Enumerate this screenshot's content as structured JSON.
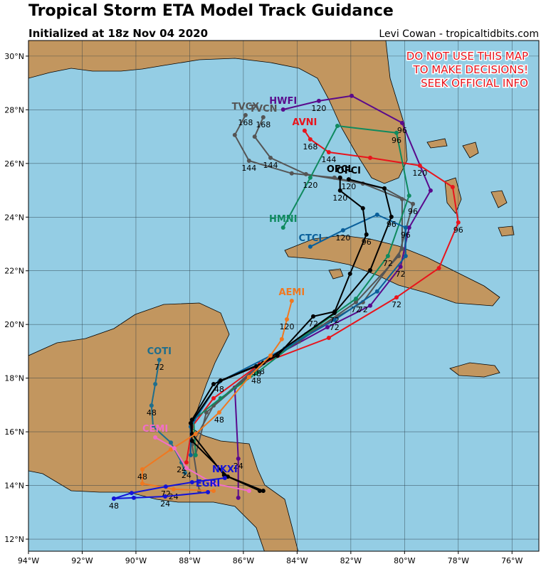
{
  "header": {
    "title": "Tropical Storm ETA Model Track Guidance",
    "subtitle": "Initialized at 18z Nov 04 2020",
    "credit": "Levi Cowan - tropicaltidbits.com"
  },
  "warning": [
    "DO NOT USE THIS MAP",
    "TO MAKE DECISIONS!",
    "SEEK OFFICIAL INFO"
  ],
  "map": {
    "xlim": [
      -94,
      -75
    ],
    "ylim": [
      11.55,
      30.58
    ],
    "xticks": [
      {
        "value": -94,
        "label": "94°W"
      },
      {
        "value": -92,
        "label": "92°W"
      },
      {
        "value": -90,
        "label": "90°W"
      },
      {
        "value": -88,
        "label": "88°W"
      },
      {
        "value": -86,
        "label": "86°W"
      },
      {
        "value": -84,
        "label": "84°W"
      },
      {
        "value": -82,
        "label": "82°W"
      },
      {
        "value": -80,
        "label": "80°W"
      },
      {
        "value": -78,
        "label": "78°W"
      },
      {
        "value": -76,
        "label": "76°W"
      }
    ],
    "yticks": [
      {
        "value": 12,
        "label": "12°N"
      },
      {
        "value": 14,
        "label": "14°N"
      },
      {
        "value": 16,
        "label": "16°N"
      },
      {
        "value": 18,
        "label": "18°N"
      },
      {
        "value": 20,
        "label": "20°N"
      },
      {
        "value": 22,
        "label": "22°N"
      },
      {
        "value": 24,
        "label": "24°N"
      },
      {
        "value": 26,
        "label": "26°N"
      },
      {
        "value": 28,
        "label": "28°N"
      },
      {
        "value": 30,
        "label": "30°N"
      }
    ],
    "grid": true,
    "tracks": [
      {
        "name": "HWFI",
        "color": "#5a0a8c",
        "points": [
          [
            -84.52,
            28.01
          ],
          [
            -83.19,
            28.33
          ],
          [
            -81.97,
            28.52
          ],
          [
            -80.09,
            27.51
          ],
          [
            -79.03,
            24.99
          ],
          [
            -79.83,
            23.61
          ],
          [
            -80.15,
            22.15
          ],
          [
            -81.28,
            20.7
          ],
          [
            -82.87,
            19.9
          ],
          [
            -85.39,
            18.52
          ],
          [
            -86.32,
            17.65
          ],
          [
            -86.19,
            15.0
          ],
          [
            -86.19,
            13.54
          ]
        ],
        "labels": [
          null,
          120,
          null,
          96,
          null,
          null,
          72,
          null,
          null,
          48,
          null,
          24,
          null
        ]
      },
      {
        "name": "TVCX",
        "color": "#555555",
        "points": [
          [
            -85.92,
            27.8
          ],
          [
            -86.32,
            27.06
          ],
          [
            -85.79,
            26.1
          ],
          [
            -84.2,
            25.63
          ],
          [
            -82.61,
            25.47
          ],
          [
            -80.75,
            25.07
          ],
          [
            -79.69,
            24.49
          ],
          [
            -80.22,
            22.55
          ],
          [
            -81.81,
            20.83
          ],
          [
            -83.93,
            19.37
          ],
          [
            -85.39,
            18.52
          ],
          [
            -87.11,
            16.98
          ],
          [
            -87.91,
            15.53
          ],
          [
            -87.64,
            13.8
          ]
        ],
        "labels": [
          168,
          null,
          144,
          null,
          null,
          null,
          96,
          null,
          72,
          null,
          null,
          null,
          null,
          null
        ]
      },
      {
        "name": "TVCN",
        "color": "#555555",
        "points": [
          [
            -85.26,
            27.72
          ],
          [
            -85.58,
            27.0
          ],
          [
            -84.99,
            26.21
          ],
          [
            -83.67,
            25.6
          ],
          [
            -81.55,
            25.25
          ],
          [
            -80.09,
            24.67
          ],
          [
            -80.09,
            22.82
          ],
          [
            -81.55,
            20.83
          ],
          [
            -83.67,
            19.63
          ],
          [
            -85.52,
            18.31
          ],
          [
            -87.38,
            16.72
          ],
          [
            -87.78,
            15.13
          ]
        ],
        "labels": [
          168,
          null,
          144,
          null,
          null,
          null,
          null,
          72,
          null,
          null,
          null,
          null
        ]
      },
      {
        "name": "AVNI",
        "color": "#e8141c",
        "points": [
          [
            -83.72,
            27.22
          ],
          [
            -83.51,
            26.9
          ],
          [
            -82.82,
            26.42
          ],
          [
            -81.28,
            26.21
          ],
          [
            -79.43,
            25.92
          ],
          [
            -78.21,
            25.12
          ],
          [
            -78.0,
            23.8
          ],
          [
            -78.72,
            22.1
          ],
          [
            -80.3,
            21.01
          ],
          [
            -82.82,
            19.5
          ],
          [
            -85.39,
            18.52
          ],
          [
            -87.11,
            17.25
          ],
          [
            -87.91,
            16.19
          ],
          [
            -88.12,
            14.86
          ]
        ],
        "labels": [
          null,
          168,
          144,
          null,
          120,
          null,
          96,
          null,
          72,
          null,
          null,
          null,
          null,
          null
        ]
      },
      {
        "name": "HMNI",
        "color": "#0f8a5f",
        "points": [
          [
            -84.52,
            23.61
          ],
          [
            -83.51,
            25.47
          ],
          [
            -82.5,
            27.4
          ],
          [
            -80.3,
            27.14
          ],
          [
            -79.83,
            24.8
          ],
          [
            -80.62,
            22.55
          ],
          [
            -81.81,
            20.96
          ],
          [
            -83.67,
            19.63
          ],
          [
            -85.52,
            18.18
          ],
          [
            -86.85,
            17.25
          ],
          [
            -87.85,
            16.45
          ],
          [
            -87.78,
            15.13
          ]
        ],
        "labels": [
          null,
          120,
          null,
          96,
          null,
          72,
          null,
          null,
          48,
          null,
          null,
          null
        ]
      },
      {
        "name": "CTCI",
        "color": "#0a5f9a",
        "points": [
          [
            -83.51,
            22.9
          ],
          [
            -82.29,
            23.51
          ],
          [
            -81.02,
            24.09
          ],
          [
            -79.96,
            23.61
          ],
          [
            -79.96,
            22.55
          ],
          [
            -81.02,
            21.23
          ],
          [
            -82.61,
            20.17
          ],
          [
            -84.46,
            19.1
          ],
          [
            -86.9,
            17.86
          ],
          [
            -87.96,
            16.19
          ],
          [
            -87.96,
            15.13
          ]
        ],
        "labels": [
          null,
          120,
          null,
          96,
          null,
          null,
          72,
          null,
          48,
          null,
          null
        ]
      },
      {
        "name": "OFCL",
        "color": "#000000",
        "points": [
          [
            -82.4,
            25.47
          ],
          [
            -82.4,
            24.99
          ],
          [
            -81.55,
            24.33
          ],
          [
            -81.42,
            23.35
          ],
          [
            -82.03,
            21.89
          ],
          [
            -82.6,
            20.48
          ],
          [
            -83.4,
            20.3
          ],
          [
            -84.73,
            18.84
          ],
          [
            -85.52,
            18.44
          ],
          [
            -87.11,
            17.78
          ],
          [
            -87.91,
            16.45
          ],
          [
            -87.91,
            15.92
          ],
          [
            -86.72,
            14.39
          ],
          [
            -85.26,
            13.8
          ]
        ],
        "labels": [
          null,
          120,
          null,
          96,
          null,
          null,
          72,
          null,
          48,
          null,
          null,
          null,
          null,
          null
        ]
      },
      {
        "name": "OFCI",
        "color": "#000000",
        "points": [
          [
            -82.08,
            25.41
          ],
          [
            -80.75,
            25.07
          ],
          [
            -80.49,
            24.01
          ],
          [
            -81.28,
            22.02
          ],
          [
            -82.61,
            20.43
          ],
          [
            -85.26,
            18.57
          ],
          [
            -86.85,
            17.91
          ],
          [
            -87.96,
            16.32
          ],
          [
            -87.91,
            15.66
          ],
          [
            -86.58,
            14.33
          ],
          [
            -85.39,
            13.8
          ]
        ],
        "labels": [
          120,
          null,
          96,
          null,
          72,
          null,
          null,
          null,
          null,
          null,
          null
        ]
      },
      {
        "name": "AEMI",
        "color": "#f07820",
        "points": [
          [
            -84.2,
            20.88
          ],
          [
            -84.38,
            20.19
          ],
          [
            -84.57,
            19.45
          ],
          [
            -84.99,
            18.84
          ],
          [
            -85.79,
            18.04
          ],
          [
            -86.9,
            16.72
          ],
          [
            -87.78,
            15.92
          ],
          [
            -88.7,
            15.34
          ],
          [
            -89.76,
            14.6
          ],
          [
            -89.76,
            14.07
          ],
          [
            -88.6,
            13.86
          ],
          [
            -87.11,
            13.8
          ]
        ],
        "labels": [
          null,
          120,
          null,
          null,
          null,
          48,
          null,
          null,
          48,
          null,
          24,
          null
        ]
      },
      {
        "name": "COTI",
        "color": "#1f6e8c",
        "points": [
          [
            -89.13,
            18.68
          ],
          [
            -89.28,
            17.78
          ],
          [
            -89.42,
            16.98
          ],
          [
            -89.36,
            16.19
          ],
          [
            -88.7,
            15.6
          ],
          [
            -88.3,
            14.86
          ],
          [
            -88.17,
            14.47
          ]
        ],
        "labels": [
          72,
          null,
          48,
          null,
          null,
          24,
          null
        ]
      },
      {
        "name": "CEMI",
        "color": "#f06ec8",
        "points": [
          [
            -89.28,
            15.79
          ],
          [
            -88.57,
            15.39
          ],
          [
            -88.12,
            14.65
          ],
          [
            -87.11,
            14.07
          ],
          [
            -85.79,
            13.8
          ]
        ],
        "labels": [
          null,
          null,
          24,
          null,
          null
        ]
      },
      {
        "name": "NKXI",
        "color": "#1414d8",
        "points": [
          [
            -86.69,
            14.28
          ],
          [
            -87.91,
            14.12
          ],
          [
            -88.89,
            13.96
          ],
          [
            -90.16,
            13.72
          ],
          [
            -90.82,
            13.51
          ]
        ],
        "labels": [
          null,
          null,
          72,
          null,
          48
        ]
      },
      {
        "name": "EGRI",
        "color": "#1414d8",
        "points": [
          [
            -87.32,
            13.75
          ],
          [
            -88.91,
            13.59
          ],
          [
            -90.08,
            13.54
          ],
          [
            -90.82,
            13.51
          ]
        ],
        "labels": [
          null,
          24,
          null,
          null
        ]
      }
    ]
  }
}
